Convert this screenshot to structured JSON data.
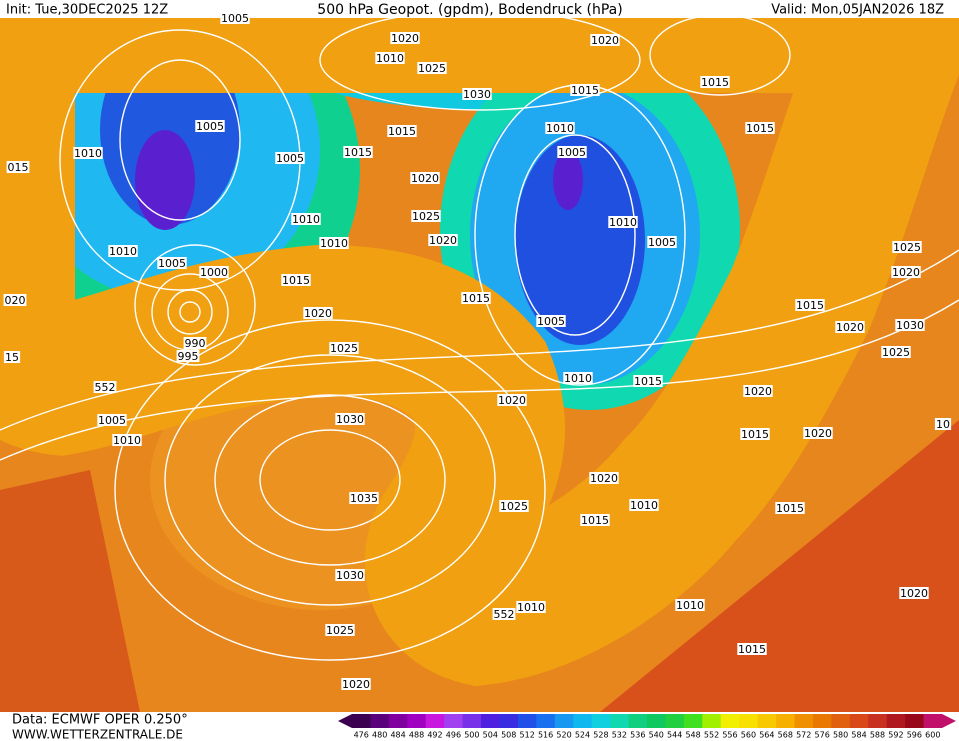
{
  "header": {
    "init": "Init: Tue,30DEC2025 12Z",
    "title": "500 hPa Geopot. (gpdm), Bodendruck (hPa)",
    "valid": "Valid: Mon,05JAN2026 18Z"
  },
  "footer": {
    "source": "Data: ECMWF OPER 0.250°",
    "website": "WWW.WETTERZENTRALE.DE"
  },
  "colorbar": {
    "labels": [
      476,
      480,
      484,
      488,
      492,
      496,
      500,
      504,
      508,
      512,
      516,
      520,
      524,
      528,
      532,
      536,
      540,
      544,
      548,
      552,
      556,
      560,
      564,
      568,
      572,
      576,
      580,
      584,
      588,
      592,
      596,
      600
    ],
    "colors": [
      "#3c0050",
      "#5a007a",
      "#80009f",
      "#a000c0",
      "#c818e0",
      "#a040f0",
      "#7830e8",
      "#5020e0",
      "#3a2ce0",
      "#2050e8",
      "#1870f0",
      "#1898f0",
      "#10b8f0",
      "#10d0e0",
      "#10d8b0",
      "#10d080",
      "#10c860",
      "#20d040",
      "#40e020",
      "#a0f000",
      "#f0f000",
      "#f8e000",
      "#f8c800",
      "#f8b000",
      "#f09000",
      "#e87800",
      "#e06010",
      "#d84818",
      "#c83020",
      "#b01820",
      "#980818",
      "#c0106a"
    ]
  },
  "isobar_labels": [
    "1005",
    "1020",
    "1020",
    "1010",
    "1025",
    "1030",
    "1015",
    "1015",
    "1005",
    "1010",
    "1015",
    "1010",
    "1015",
    "1005",
    "1015",
    "1005",
    "015",
    "1020",
    "1025",
    "1010",
    "1010",
    "1010",
    "1020",
    "1005",
    "1010",
    "1005",
    "1000",
    "1025",
    "1020",
    "1015",
    "020",
    "1015",
    "1015",
    "1020",
    "1005",
    "1020",
    "1030",
    "990",
    "1025",
    "995",
    "1025",
    "15",
    "552",
    "1010",
    "1015",
    "1020",
    "1005",
    "1020",
    "1030",
    "1010",
    "1015",
    "1020",
    "10",
    "1020",
    "1035",
    "1025",
    "1015",
    "1010",
    "1015",
    "1030",
    "552",
    "1010",
    "1010",
    "1020",
    "1025",
    "1015",
    "1020"
  ]
}
